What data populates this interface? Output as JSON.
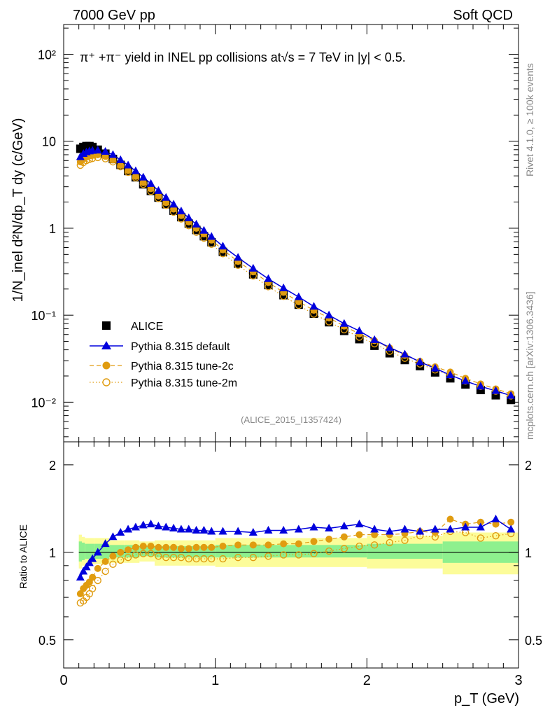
{
  "header": {
    "left": "7000 GeV pp",
    "right": "Soft QCD"
  },
  "side": {
    "top": "Rivet 4.1.0, ≥ 100k events",
    "bottom": "mcplots.cern.ch [arXiv:1306.3436]"
  },
  "colors": {
    "data": "#000000",
    "default": "#0000dd",
    "tune2c": "#e09c10",
    "band_inner": "#8ef08e",
    "band_outer": "#fcfc9a"
  },
  "chart_data": [
    {
      "type": "scatter",
      "panel": "main",
      "title": "π⁺ +π⁻ yield in INEL pp collisions at√s = 7 TeV in |y| < 0.5.",
      "watermark": "(ALICE_2015_I1357424)",
      "ylabel": "1/N_inel d²N/dp_T dy (c/GeV)",
      "xlabel": "p_T (GeV)",
      "xlim": [
        0,
        3
      ],
      "ylim": [
        0.0035,
        220
      ],
      "yscale": "log",
      "xticks": [
        "0",
        "1",
        "2",
        "3"
      ],
      "yticks": [
        "10⁻²",
        "10⁻¹",
        "1",
        "10",
        "10²"
      ],
      "legend_position": "bottom-left",
      "series": [
        {
          "name": "ALICE",
          "style": "square",
          "x": [
            0.11,
            0.13,
            0.15,
            0.17,
            0.19,
            0.225,
            0.275,
            0.325,
            0.375,
            0.425,
            0.475,
            0.525,
            0.575,
            0.625,
            0.675,
            0.725,
            0.775,
            0.825,
            0.875,
            0.925,
            0.975,
            1.05,
            1.15,
            1.25,
            1.35,
            1.45,
            1.55,
            1.65,
            1.75,
            1.85,
            1.95,
            2.05,
            2.15,
            2.25,
            2.35,
            2.45,
            2.55,
            2.65,
            2.75,
            2.85,
            2.95
          ],
          "values": [
            8.2,
            8.6,
            8.8,
            8.8,
            8.6,
            8.0,
            7.2,
            6.25,
            5.35,
            4.55,
            3.85,
            3.2,
            2.68,
            2.25,
            1.89,
            1.59,
            1.34,
            1.13,
            0.955,
            0.81,
            0.69,
            0.535,
            0.392,
            0.295,
            0.222,
            0.17,
            0.132,
            0.104,
            0.083,
            0.066,
            0.053,
            0.0445,
            0.0365,
            0.0305,
            0.026,
            0.022,
            0.0188,
            0.016,
            0.0138,
            0.012,
            0.0106
          ]
        },
        {
          "name": "Pythia 8.315 default",
          "style": "triangle-line",
          "x": [
            0.11,
            0.13,
            0.15,
            0.17,
            0.19,
            0.225,
            0.275,
            0.325,
            0.375,
            0.425,
            0.475,
            0.525,
            0.575,
            0.625,
            0.675,
            0.725,
            0.775,
            0.825,
            0.875,
            0.925,
            0.975,
            1.05,
            1.15,
            1.25,
            1.35,
            1.45,
            1.55,
            1.65,
            1.75,
            1.85,
            1.95,
            2.05,
            2.15,
            2.25,
            2.35,
            2.45,
            2.55,
            2.65,
            2.75,
            2.85,
            2.95
          ],
          "values": [
            6.6,
            7.2,
            7.5,
            7.7,
            7.8,
            7.85,
            7.6,
            7.0,
            6.1,
            5.3,
            4.55,
            3.85,
            3.25,
            2.7,
            2.25,
            1.88,
            1.57,
            1.31,
            1.11,
            0.94,
            0.8,
            0.62,
            0.46,
            0.345,
            0.262,
            0.205,
            0.162,
            0.126,
            0.1,
            0.08,
            0.066,
            0.052,
            0.0425,
            0.0355,
            0.029,
            0.0245,
            0.0205,
            0.0175,
            0.0152,
            0.0135,
            0.0119
          ]
        },
        {
          "name": "Pythia 8.315 tune-2c",
          "style": "circle-dashed",
          "x": [
            0.11,
            0.13,
            0.15,
            0.17,
            0.19,
            0.225,
            0.275,
            0.325,
            0.375,
            0.425,
            0.475,
            0.525,
            0.575,
            0.625,
            0.675,
            0.725,
            0.775,
            0.825,
            0.875,
            0.925,
            0.975,
            1.05,
            1.15,
            1.25,
            1.35,
            1.45,
            1.55,
            1.65,
            1.75,
            1.85,
            1.95,
            2.05,
            2.15,
            2.25,
            2.35,
            2.45,
            2.55,
            2.65,
            2.75,
            2.85,
            2.95
          ],
          "values": [
            5.8,
            6.3,
            6.6,
            6.8,
            6.9,
            7.0,
            6.7,
            6.1,
            5.3,
            4.6,
            3.95,
            3.35,
            2.85,
            2.35,
            1.97,
            1.66,
            1.4,
            1.18,
            1.0,
            0.86,
            0.73,
            0.565,
            0.415,
            0.315,
            0.238,
            0.183,
            0.143,
            0.114,
            0.093,
            0.075,
            0.061,
            0.051,
            0.042,
            0.0345,
            0.0295,
            0.0255,
            0.0222,
            0.0188,
            0.0162,
            0.0142,
            0.0125
          ]
        },
        {
          "name": "Pythia 8.315 tune-2m",
          "style": "open-circle-dotted",
          "x": [
            0.11,
            0.13,
            0.15,
            0.17,
            0.19,
            0.225,
            0.275,
            0.325,
            0.375,
            0.425,
            0.475,
            0.525,
            0.575,
            0.625,
            0.675,
            0.725,
            0.775,
            0.825,
            0.875,
            0.925,
            0.975,
            1.05,
            1.15,
            1.25,
            1.35,
            1.45,
            1.55,
            1.65,
            1.75,
            1.85,
            1.95,
            2.05,
            2.15,
            2.25,
            2.35,
            2.45,
            2.55,
            2.65,
            2.75,
            2.85,
            2.95
          ],
          "values": [
            5.3,
            5.7,
            6.0,
            6.2,
            6.35,
            6.5,
            6.3,
            5.8,
            5.1,
            4.4,
            3.8,
            3.2,
            2.65,
            2.2,
            1.83,
            1.53,
            1.28,
            1.07,
            0.9,
            0.77,
            0.655,
            0.51,
            0.375,
            0.283,
            0.213,
            0.165,
            0.13,
            0.103,
            0.084,
            0.068,
            0.056,
            0.047,
            0.0385,
            0.032,
            0.0275,
            0.0235,
            0.0205,
            0.0175,
            0.0152,
            0.0134,
            0.0118
          ]
        }
      ]
    },
    {
      "type": "line",
      "panel": "ratio",
      "ylabel": "Ratio to ALICE",
      "xlim": [
        0,
        3
      ],
      "ylim": [
        0.4,
        2.4
      ],
      "yscale": "log",
      "yticks": [
        "0.5",
        "1",
        "2"
      ],
      "bands": {
        "x_edges": [
          0.1,
          0.12,
          0.14,
          0.2,
          0.3,
          0.4,
          0.5,
          0.6,
          1.0,
          2.0,
          2.5,
          3.0
        ],
        "stat_sys_inner": [
          [
            0.93,
            1.09
          ],
          [
            0.94,
            1.08
          ],
          [
            0.95,
            1.07
          ],
          [
            0.95,
            1.07
          ],
          [
            0.96,
            1.06
          ],
          [
            0.96,
            1.06
          ],
          [
            0.97,
            1.05
          ],
          [
            0.96,
            1.05
          ],
          [
            0.96,
            1.06
          ],
          [
            0.95,
            1.07
          ],
          [
            0.92,
            1.09
          ],
          [
            0.91,
            1.1
          ]
        ],
        "stat_sys_outer": [
          [
            0.88,
            1.15
          ],
          [
            0.9,
            1.13
          ],
          [
            0.91,
            1.12
          ],
          [
            0.91,
            1.12
          ],
          [
            0.92,
            1.1
          ],
          [
            0.92,
            1.1
          ],
          [
            0.93,
            1.09
          ],
          [
            0.9,
            1.1
          ],
          [
            0.89,
            1.12
          ],
          [
            0.88,
            1.14
          ],
          [
            0.84,
            1.17
          ],
          [
            0.84,
            1.18
          ]
        ]
      },
      "series": [
        {
          "name": "Pythia 8.315 default",
          "x": [
            0.11,
            0.13,
            0.15,
            0.17,
            0.19,
            0.225,
            0.275,
            0.325,
            0.375,
            0.425,
            0.475,
            0.525,
            0.575,
            0.625,
            0.675,
            0.725,
            0.775,
            0.825,
            0.875,
            0.925,
            0.975,
            1.05,
            1.15,
            1.25,
            1.35,
            1.45,
            1.55,
            1.65,
            1.75,
            1.85,
            1.95,
            2.05,
            2.15,
            2.25,
            2.35,
            2.45,
            2.55,
            2.65,
            2.75,
            2.85,
            2.95
          ],
          "values": [
            0.82,
            0.86,
            0.89,
            0.92,
            0.95,
            1.0,
            1.07,
            1.13,
            1.17,
            1.2,
            1.22,
            1.24,
            1.25,
            1.23,
            1.22,
            1.21,
            1.2,
            1.2,
            1.19,
            1.19,
            1.18,
            1.18,
            1.18,
            1.17,
            1.19,
            1.19,
            1.2,
            1.22,
            1.21,
            1.23,
            1.25,
            1.2,
            1.18,
            1.2,
            1.18,
            1.2,
            1.2,
            1.22,
            1.22,
            1.3,
            1.2
          ]
        },
        {
          "name": "Pythia 8.315 tune-2c",
          "x": [
            0.11,
            0.13,
            0.15,
            0.17,
            0.19,
            0.225,
            0.275,
            0.325,
            0.375,
            0.425,
            0.475,
            0.525,
            0.575,
            0.625,
            0.675,
            0.725,
            0.775,
            0.825,
            0.875,
            0.925,
            0.975,
            1.05,
            1.15,
            1.25,
            1.35,
            1.45,
            1.55,
            1.65,
            1.75,
            1.85,
            1.95,
            2.05,
            2.15,
            2.25,
            2.35,
            2.45,
            2.55,
            2.65,
            2.75,
            2.85,
            2.95
          ],
          "values": [
            0.72,
            0.75,
            0.77,
            0.79,
            0.82,
            0.88,
            0.93,
            0.97,
            1.0,
            1.02,
            1.04,
            1.05,
            1.05,
            1.04,
            1.04,
            1.04,
            1.03,
            1.03,
            1.04,
            1.04,
            1.04,
            1.05,
            1.06,
            1.06,
            1.06,
            1.07,
            1.07,
            1.09,
            1.11,
            1.13,
            1.15,
            1.15,
            1.15,
            1.16,
            1.18,
            1.17,
            1.3,
            1.25,
            1.27,
            1.25,
            1.27
          ]
        },
        {
          "name": "Pythia 8.315 tune-2m",
          "x": [
            0.11,
            0.13,
            0.15,
            0.17,
            0.19,
            0.225,
            0.275,
            0.325,
            0.375,
            0.425,
            0.475,
            0.525,
            0.575,
            0.625,
            0.675,
            0.725,
            0.775,
            0.825,
            0.875,
            0.925,
            0.975,
            1.05,
            1.15,
            1.25,
            1.35,
            1.45,
            1.55,
            1.65,
            1.75,
            1.85,
            1.95,
            2.05,
            2.15,
            2.25,
            2.35,
            2.45,
            2.55,
            2.65,
            2.75,
            2.85,
            2.95
          ],
          "values": [
            0.67,
            0.68,
            0.7,
            0.72,
            0.75,
            0.8,
            0.86,
            0.91,
            0.94,
            0.96,
            0.98,
            0.99,
            0.99,
            0.97,
            0.96,
            0.96,
            0.96,
            0.95,
            0.95,
            0.95,
            0.95,
            0.95,
            0.96,
            0.96,
            0.97,
            0.98,
            0.98,
            0.99,
            1.01,
            1.03,
            1.05,
            1.06,
            1.08,
            1.1,
            1.14,
            1.13,
            1.18,
            1.17,
            1.12,
            1.14,
            1.16
          ]
        }
      ]
    }
  ]
}
